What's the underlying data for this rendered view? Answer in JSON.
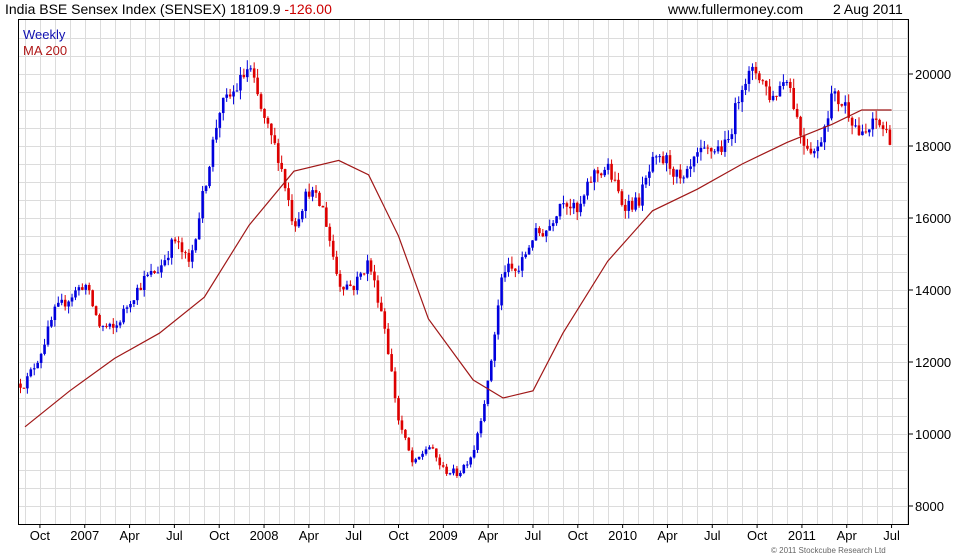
{
  "header": {
    "title": "India BSE Sensex Index (SENSEX) 18109.9",
    "change": "-126.00",
    "site": "www.fullermoney.com",
    "date": "2 Aug 2011"
  },
  "footer": {
    "copyright": "© 2011 Stockcube Research Ltd"
  },
  "colors": {
    "up": "#0000dd",
    "down": "#dd0000",
    "ma": "#a01818",
    "grid": "#dcdcdc"
  },
  "chart_data": {
    "type": "line",
    "title": "India BSE Sensex Index (SENSEX) 18109.9 -126.00",
    "xlabel": "",
    "ylabel": "",
    "ylim": [
      7500,
      21500
    ],
    "y_axis_side": "right",
    "grid": true,
    "legend": {
      "placement": "top-left",
      "entries": [
        "Weekly",
        "MA 200"
      ]
    },
    "x_tick_labels": [
      "Oct",
      "2007",
      "Apr",
      "Jul",
      "Oct",
      "2008",
      "Apr",
      "Jul",
      "Oct",
      "2009",
      "Apr",
      "Jul",
      "Oct",
      "2010",
      "Apr",
      "Jul",
      "Oct",
      "2011",
      "Apr",
      "Jul"
    ],
    "y_ticks": [
      8000,
      10000,
      12000,
      14000,
      16000,
      18000,
      20000
    ],
    "series": [
      {
        "name": "Weekly",
        "style": "ohlc-bars",
        "x": [
          "2006-09",
          "2006-10",
          "2006-11",
          "2006-12",
          "2007-01",
          "2007-02",
          "2007-03",
          "2007-04",
          "2007-05",
          "2007-06",
          "2007-07",
          "2007-08",
          "2007-09",
          "2007-10",
          "2007-11",
          "2007-12",
          "2008-01",
          "2008-02",
          "2008-03",
          "2008-04",
          "2008-05",
          "2008-06",
          "2008-07",
          "2008-08",
          "2008-09",
          "2008-10",
          "2008-11",
          "2008-12",
          "2009-01",
          "2009-02",
          "2009-03",
          "2009-04",
          "2009-05",
          "2009-06",
          "2009-07",
          "2009-08",
          "2009-09",
          "2009-10",
          "2009-11",
          "2009-12",
          "2010-01",
          "2010-02",
          "2010-03",
          "2010-04",
          "2010-05",
          "2010-06",
          "2010-07",
          "2010-08",
          "2010-09",
          "2010-10",
          "2010-11",
          "2010-12",
          "2011-01",
          "2011-02",
          "2011-03",
          "2011-04",
          "2011-05",
          "2011-06",
          "2011-07"
        ],
        "values": [
          11400,
          12200,
          13400,
          13800,
          14200,
          13000,
          12900,
          13700,
          14300,
          14600,
          15400,
          14700,
          16800,
          19000,
          19500,
          20200,
          18700,
          17700,
          15800,
          16800,
          16200,
          14200,
          14100,
          14800,
          13200,
          10400,
          9100,
          9700,
          9000,
          8900,
          9500,
          11400,
          14600,
          14500,
          15500,
          15700,
          16600,
          16100,
          17200,
          17400,
          16400,
          16400,
          17500,
          17600,
          16900,
          17700,
          17900,
          18000,
          19800,
          20100,
          19300,
          20000,
          18200,
          17800,
          19400,
          19100,
          18200,
          18700,
          18200
        ]
      },
      {
        "name": "MA 200",
        "style": "line",
        "x": [
          "2006-09",
          "2006-12",
          "2007-03",
          "2007-06",
          "2007-09",
          "2007-12",
          "2008-03",
          "2008-06",
          "2008-08",
          "2008-10",
          "2008-12",
          "2009-03",
          "2009-05",
          "2009-07",
          "2009-09",
          "2009-12",
          "2010-03",
          "2010-06",
          "2010-09",
          "2010-12",
          "2011-03",
          "2011-05",
          "2011-07"
        ],
        "values": [
          10200,
          11200,
          12100,
          12800,
          13800,
          15800,
          17300,
          17600,
          17200,
          15500,
          13200,
          11500,
          11000,
          11200,
          12800,
          14800,
          16200,
          16800,
          17500,
          18100,
          18600,
          19000,
          19000
        ]
      }
    ]
  }
}
